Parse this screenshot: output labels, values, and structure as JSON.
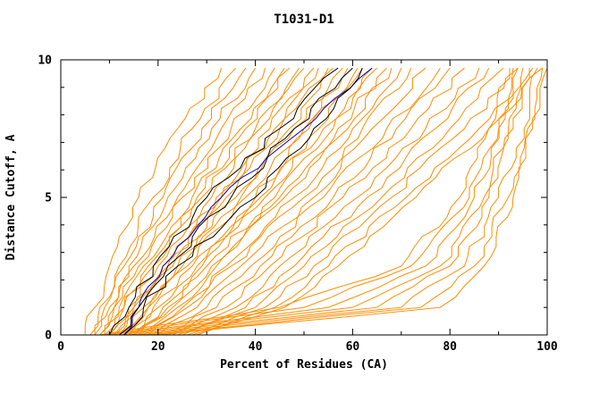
{
  "page": {
    "title": "T1031-D1"
  },
  "chart_data": {
    "type": "line",
    "title": "T1031-D1",
    "xlabel": "Percent of Residues (CA)",
    "ylabel": "Distance Cutoff, A",
    "xlim": [
      0,
      100
    ],
    "ylim": [
      0,
      10
    ],
    "xticks": [
      0,
      20,
      40,
      60,
      80,
      100
    ],
    "yticks": [
      0,
      5,
      10
    ],
    "x_minor_step": 10,
    "y_minor_step": 1,
    "legend": "none",
    "grid": false,
    "colors": {
      "orange": "#ff8c00",
      "black": "#000000",
      "blue": "#0000c8",
      "axis": "#000000",
      "background": "#ffffff"
    },
    "series": [
      {
        "color": "orange",
        "points": [
          [
            5,
            0
          ],
          [
            7,
            1
          ],
          [
            10,
            2.5
          ],
          [
            16,
            5
          ],
          [
            24,
            7.5
          ],
          [
            33,
            9.7
          ]
        ]
      },
      {
        "color": "orange",
        "points": [
          [
            6,
            0
          ],
          [
            8,
            1
          ],
          [
            12,
            2.5
          ],
          [
            19,
            5
          ],
          [
            27,
            7.5
          ],
          [
            36,
            9.7
          ]
        ]
      },
      {
        "color": "orange",
        "points": [
          [
            7,
            0
          ],
          [
            9,
            1
          ],
          [
            13,
            2.5
          ],
          [
            21,
            5
          ],
          [
            29,
            7.5
          ],
          [
            38,
            9.7
          ]
        ]
      },
      {
        "color": "orange",
        "points": [
          [
            7,
            0
          ],
          [
            10,
            1
          ],
          [
            14,
            2.5
          ],
          [
            22,
            5
          ],
          [
            31,
            7.5
          ],
          [
            40,
            9.7
          ]
        ]
      },
      {
        "color": "orange",
        "points": [
          [
            8,
            0
          ],
          [
            11,
            1
          ],
          [
            15,
            2.5
          ],
          [
            24,
            5
          ],
          [
            33,
            7.5
          ],
          [
            42,
            9.7
          ]
        ]
      },
      {
        "color": "orange",
        "points": [
          [
            8,
            0
          ],
          [
            11,
            1
          ],
          [
            16,
            2.5
          ],
          [
            25,
            5
          ],
          [
            35,
            7.5
          ],
          [
            44,
            9.7
          ]
        ]
      },
      {
        "color": "orange",
        "points": [
          [
            9,
            0
          ],
          [
            12,
            1
          ],
          [
            17,
            2.5
          ],
          [
            27,
            5
          ],
          [
            37,
            7.5
          ],
          [
            46,
            9.7
          ]
        ]
      },
      {
        "color": "orange",
        "points": [
          [
            9,
            0
          ],
          [
            13,
            1
          ],
          [
            18,
            2.5
          ],
          [
            28,
            5
          ],
          [
            38,
            7.5
          ],
          [
            47,
            9.7
          ]
        ]
      },
      {
        "color": "orange",
        "points": [
          [
            10,
            0
          ],
          [
            13,
            1
          ],
          [
            19,
            2.5
          ],
          [
            29,
            5
          ],
          [
            40,
            7.5
          ],
          [
            49,
            9.7
          ]
        ]
      },
      {
        "color": "orange",
        "points": [
          [
            10,
            0
          ],
          [
            14,
            1
          ],
          [
            20,
            2.5
          ],
          [
            31,
            5
          ],
          [
            41,
            7.5
          ],
          [
            50,
            9.7
          ]
        ]
      },
      {
        "color": "orange",
        "points": [
          [
            11,
            0
          ],
          [
            15,
            1
          ],
          [
            21,
            2.5
          ],
          [
            32,
            5
          ],
          [
            43,
            7.5
          ],
          [
            52,
            9.7
          ]
        ]
      },
      {
        "color": "orange",
        "points": [
          [
            11,
            0
          ],
          [
            15,
            1
          ],
          [
            22,
            2.5
          ],
          [
            33,
            5
          ],
          [
            44,
            7.5
          ],
          [
            53,
            9.7
          ]
        ]
      },
      {
        "color": "orange",
        "points": [
          [
            12,
            0
          ],
          [
            16,
            1
          ],
          [
            23,
            2.5
          ],
          [
            34,
            5
          ],
          [
            45,
            7.5
          ],
          [
            55,
            9.7
          ]
        ]
      },
      {
        "color": "orange",
        "points": [
          [
            12,
            0
          ],
          [
            17,
            1
          ],
          [
            24,
            2.5
          ],
          [
            36,
            5
          ],
          [
            47,
            7.5
          ],
          [
            56,
            9.7
          ]
        ]
      },
      {
        "color": "orange",
        "points": [
          [
            13,
            0
          ],
          [
            18,
            1
          ],
          [
            25,
            2.5
          ],
          [
            37,
            5
          ],
          [
            48,
            7.5
          ],
          [
            58,
            9.7
          ]
        ]
      },
      {
        "color": "orange",
        "points": [
          [
            13,
            0
          ],
          [
            18,
            1
          ],
          [
            26,
            2.5
          ],
          [
            38,
            5
          ],
          [
            50,
            7.5
          ],
          [
            59,
            9.7
          ]
        ]
      },
      {
        "color": "orange",
        "points": [
          [
            14,
            0
          ],
          [
            19,
            1
          ],
          [
            27,
            2.5
          ],
          [
            40,
            5
          ],
          [
            51,
            7.5
          ],
          [
            61,
            9.7
          ]
        ]
      },
      {
        "color": "orange",
        "points": [
          [
            14,
            0
          ],
          [
            20,
            1
          ],
          [
            28,
            2.5
          ],
          [
            41,
            5
          ],
          [
            53,
            7.5
          ],
          [
            62,
            9.7
          ]
        ]
      },
      {
        "color": "orange",
        "points": [
          [
            15,
            0
          ],
          [
            21,
            1
          ],
          [
            29,
            2.5
          ],
          [
            42,
            5
          ],
          [
            54,
            7.5
          ],
          [
            64,
            9.7
          ]
        ]
      },
      {
        "color": "orange",
        "points": [
          [
            15,
            0
          ],
          [
            22,
            1
          ],
          [
            30,
            2.5
          ],
          [
            44,
            5
          ],
          [
            56,
            7.5
          ],
          [
            65,
            9.7
          ]
        ]
      },
      {
        "color": "orange",
        "points": [
          [
            16,
            0
          ],
          [
            23,
            1
          ],
          [
            31,
            2.5
          ],
          [
            45,
            5
          ],
          [
            57,
            7.5
          ],
          [
            67,
            9.7
          ]
        ]
      },
      {
        "color": "orange",
        "points": [
          [
            16,
            0
          ],
          [
            24,
            1
          ],
          [
            32,
            2.5
          ],
          [
            46,
            5
          ],
          [
            59,
            7.5
          ],
          [
            68,
            9.7
          ]
        ]
      },
      {
        "color": "orange",
        "points": [
          [
            17,
            0
          ],
          [
            25,
            1
          ],
          [
            34,
            2.5
          ],
          [
            48,
            5
          ],
          [
            60,
            7.5
          ],
          [
            70,
            9.7
          ]
        ]
      },
      {
        "color": "orange",
        "points": [
          [
            18,
            0
          ],
          [
            26,
            1
          ],
          [
            35,
            2.5
          ],
          [
            50,
            5
          ],
          [
            62,
            7.5
          ],
          [
            72,
            9.7
          ]
        ]
      },
      {
        "color": "orange",
        "points": [
          [
            19,
            0
          ],
          [
            28,
            1
          ],
          [
            37,
            2.5
          ],
          [
            52,
            5
          ],
          [
            64,
            7.5
          ],
          [
            75,
            9.7
          ]
        ]
      },
      {
        "color": "orange",
        "points": [
          [
            20,
            0
          ],
          [
            30,
            1
          ],
          [
            39,
            2.5
          ],
          [
            54,
            5
          ],
          [
            67,
            7.5
          ],
          [
            78,
            9.7
          ]
        ]
      },
      {
        "color": "orange",
        "points": [
          [
            21,
            0
          ],
          [
            32,
            1
          ],
          [
            41,
            2.5
          ],
          [
            56,
            5
          ],
          [
            69,
            7.5
          ],
          [
            80,
            9.7
          ]
        ]
      },
      {
        "color": "orange",
        "points": [
          [
            22,
            0
          ],
          [
            34,
            1
          ],
          [
            43,
            2.5
          ],
          [
            58,
            5
          ],
          [
            72,
            7.5
          ],
          [
            83,
            9.7
          ]
        ]
      },
      {
        "color": "orange",
        "points": [
          [
            23,
            0
          ],
          [
            36,
            1
          ],
          [
            45,
            2.5
          ],
          [
            61,
            5
          ],
          [
            75,
            7.5
          ],
          [
            86,
            9.7
          ]
        ]
      },
      {
        "color": "orange",
        "points": [
          [
            24,
            0
          ],
          [
            38,
            1
          ],
          [
            48,
            2.5
          ],
          [
            63,
            5
          ],
          [
            77,
            7.5
          ],
          [
            88,
            9.7
          ]
        ]
      },
      {
        "color": "orange",
        "points": [
          [
            25,
            0
          ],
          [
            40,
            1
          ],
          [
            50,
            2.5
          ],
          [
            66,
            5
          ],
          [
            80,
            7.5
          ],
          [
            91,
            9.7
          ]
        ]
      },
      {
        "color": "orange",
        "points": [
          [
            26,
            0
          ],
          [
            42,
            1
          ],
          [
            52,
            2.5
          ],
          [
            68,
            5
          ],
          [
            83,
            7.5
          ],
          [
            94,
            9.7
          ]
        ]
      },
      {
        "color": "orange",
        "points": [
          [
            27,
            0
          ],
          [
            44,
            1
          ],
          [
            55,
            2.5
          ],
          [
            71,
            5
          ],
          [
            86,
            7.5
          ],
          [
            97,
            9.7
          ]
        ]
      },
      {
        "color": "orange",
        "points": [
          [
            28,
            0
          ],
          [
            46,
            1
          ],
          [
            57,
            2.5
          ],
          [
            73,
            5
          ],
          [
            88,
            7.5
          ],
          [
            99,
            9.7
          ]
        ]
      },
      {
        "color": "orange",
        "points": [
          [
            10,
            0
          ],
          [
            55,
            1
          ],
          [
            75,
            2.5
          ],
          [
            85,
            5
          ],
          [
            90,
            7.5
          ],
          [
            93,
            9.7
          ]
        ]
      },
      {
        "color": "orange",
        "points": [
          [
            12,
            0
          ],
          [
            60,
            1
          ],
          [
            78,
            2.5
          ],
          [
            87,
            5
          ],
          [
            92,
            7.5
          ],
          [
            95,
            9.7
          ]
        ]
      },
      {
        "color": "orange",
        "points": [
          [
            14,
            0
          ],
          [
            65,
            1
          ],
          [
            80,
            2.5
          ],
          [
            88,
            5
          ],
          [
            93,
            7.5
          ],
          [
            96,
            9.7
          ]
        ]
      },
      {
        "color": "orange",
        "points": [
          [
            16,
            0
          ],
          [
            70,
            1
          ],
          [
            83,
            2.5
          ],
          [
            90,
            5
          ],
          [
            95,
            7.5
          ],
          [
            98,
            9.7
          ]
        ]
      },
      {
        "color": "orange",
        "points": [
          [
            18,
            0
          ],
          [
            74,
            1
          ],
          [
            85,
            2.5
          ],
          [
            92,
            5
          ],
          [
            96,
            7.5
          ],
          [
            99,
            9.7
          ]
        ]
      },
      {
        "color": "orange",
        "points": [
          [
            20,
            0
          ],
          [
            78,
            1
          ],
          [
            87,
            2.5
          ],
          [
            93,
            5
          ],
          [
            97,
            7.5
          ],
          [
            100,
            9.7
          ]
        ]
      },
      {
        "color": "orange",
        "points": [
          [
            8,
            0
          ],
          [
            45,
            1
          ],
          [
            70,
            2.5
          ],
          [
            82,
            5
          ],
          [
            88,
            7.5
          ],
          [
            92,
            9.7
          ]
        ]
      },
      {
        "color": "orange",
        "points": [
          [
            9,
            0
          ],
          [
            50,
            1
          ],
          [
            72,
            2.5
          ],
          [
            84,
            5
          ],
          [
            90,
            7.5
          ],
          [
            94,
            9.7
          ]
        ]
      },
      {
        "color": "blue",
        "points": [
          [
            13,
            0
          ],
          [
            16,
            1
          ],
          [
            21,
            2.5
          ],
          [
            33,
            5
          ],
          [
            50,
            7.5
          ],
          [
            64,
            9.7
          ]
        ]
      },
      {
        "color": "black",
        "points": [
          [
            10,
            0
          ],
          [
            14,
            1
          ],
          [
            19,
            2.5
          ],
          [
            30,
            5
          ],
          [
            45,
            7.5
          ],
          [
            57,
            9.7
          ]
        ]
      },
      {
        "color": "black",
        "points": [
          [
            12,
            0
          ],
          [
            16,
            1
          ],
          [
            22,
            2.5
          ],
          [
            35,
            5
          ],
          [
            48,
            7.5
          ],
          [
            60,
            9.7
          ]
        ]
      },
      {
        "color": "black",
        "points": [
          [
            13,
            0
          ],
          [
            17,
            1
          ],
          [
            24,
            2.5
          ],
          [
            40,
            5
          ],
          [
            52,
            7.5
          ],
          [
            62,
            9.7
          ]
        ]
      }
    ]
  }
}
